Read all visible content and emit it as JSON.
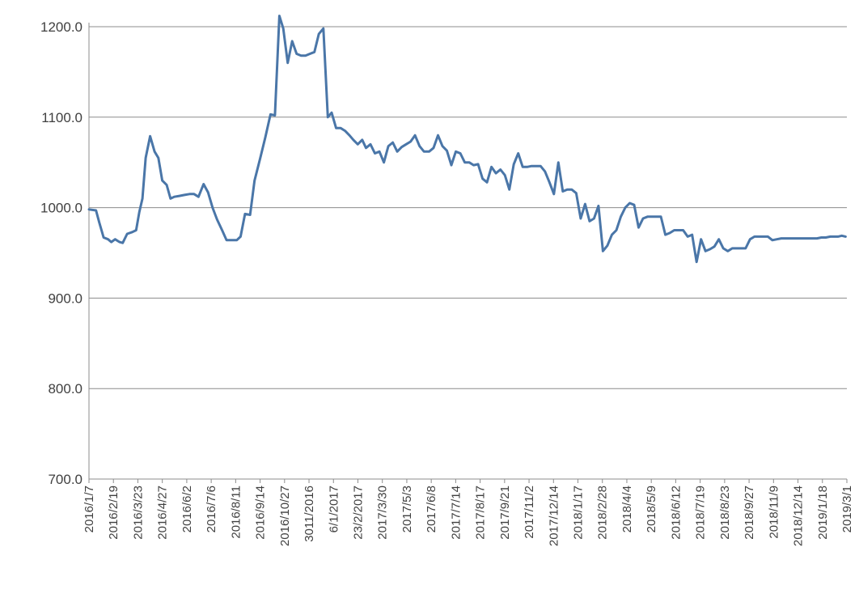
{
  "colors": {
    "line": "#4a76a8",
    "grid": "#8c8c8c",
    "text": "#404040",
    "background": "#ffffff"
  },
  "chart_data": {
    "type": "line",
    "title": "",
    "xlabel": "",
    "ylabel": "",
    "ylim": [
      700,
      1200
    ],
    "grid": true,
    "legend": "none",
    "y_ticks": [
      "700.0",
      "800.0",
      "900.0",
      "1000.0",
      "1100.0",
      "1200.0"
    ],
    "x_tick_labels": [
      "2016/1/7",
      "2016/2/19",
      "2016/3/23",
      "2016/4/27",
      "2016/6/2",
      "2016/7/6",
      "2016/8/11",
      "2016/9/14",
      "2016/10/27",
      "3011/2016",
      "6/1/2017",
      "23/2/2017",
      "2017/3/30",
      "2017/5/3",
      "2017/6/8",
      "2017/7/14",
      "2017/8/17",
      "2017/9/21",
      "2017/11/2",
      "2017/12/14",
      "2018/1/17",
      "2018/2/28",
      "2018/4/4",
      "2018/5/9",
      "2018/6/12",
      "2018/7/19",
      "2018/8/23",
      "2018/9/27",
      "2018/11/9",
      "2018/12/14",
      "2019/1/18",
      "2019/3/1"
    ],
    "series": [
      {
        "points": [
          [
            0,
            998
          ],
          [
            1.1,
            997
          ],
          [
            1.6,
            984
          ],
          [
            2.3,
            967
          ],
          [
            3.0,
            965
          ],
          [
            3.5,
            962
          ],
          [
            4.1,
            965
          ],
          [
            4.8,
            962
          ],
          [
            5.3,
            961
          ],
          [
            6.0,
            971
          ],
          [
            6.8,
            973
          ],
          [
            7.4,
            975
          ],
          [
            7.9,
            995
          ],
          [
            8.4,
            1010
          ],
          [
            8.9,
            1055
          ],
          [
            9.6,
            1079
          ],
          [
            10.3,
            1062
          ],
          [
            10.9,
            1055
          ],
          [
            11.5,
            1030
          ],
          [
            12.2,
            1025
          ],
          [
            12.8,
            1010
          ],
          [
            13.4,
            1012
          ],
          [
            14.2,
            1013
          ],
          [
            15.0,
            1014
          ],
          [
            15.8,
            1015
          ],
          [
            16.5,
            1015
          ],
          [
            17.2,
            1012
          ],
          [
            18.0,
            1026
          ],
          [
            18.7,
            1017
          ],
          [
            19.4,
            1000
          ],
          [
            20.1,
            987
          ],
          [
            20.9,
            975
          ],
          [
            21.6,
            964
          ],
          [
            22.4,
            964
          ],
          [
            23.2,
            964
          ],
          [
            23.8,
            968
          ],
          [
            24.5,
            993
          ],
          [
            25.3,
            992
          ],
          [
            26.0,
            1030
          ],
          [
            26.9,
            1055
          ],
          [
            27.7,
            1078
          ],
          [
            28.5,
            1103
          ],
          [
            29.2,
            1102
          ],
          [
            29.9,
            1212
          ],
          [
            30.5,
            1198
          ],
          [
            31.2,
            1160
          ],
          [
            31.9,
            1184
          ],
          [
            32.6,
            1170
          ],
          [
            33.3,
            1168
          ],
          [
            34.0,
            1168
          ],
          [
            34.7,
            1170
          ],
          [
            35.4,
            1172
          ],
          [
            36.1,
            1192
          ],
          [
            36.8,
            1198
          ],
          [
            37.5,
            1100
          ],
          [
            38.1,
            1105
          ],
          [
            38.8,
            1088
          ],
          [
            39.5,
            1088
          ],
          [
            40.2,
            1085
          ],
          [
            40.9,
            1080
          ],
          [
            41.5,
            1075
          ],
          [
            42.2,
            1070
          ],
          [
            42.9,
            1075
          ],
          [
            43.5,
            1066
          ],
          [
            44.2,
            1070
          ],
          [
            44.9,
            1060
          ],
          [
            45.6,
            1062
          ],
          [
            46.3,
            1050
          ],
          [
            47.0,
            1068
          ],
          [
            47.7,
            1072
          ],
          [
            48.4,
            1062
          ],
          [
            49.1,
            1067
          ],
          [
            49.8,
            1070
          ],
          [
            50.5,
            1073
          ],
          [
            51.2,
            1080
          ],
          [
            51.9,
            1068
          ],
          [
            52.6,
            1062
          ],
          [
            53.4,
            1062
          ],
          [
            54.1,
            1066
          ],
          [
            54.8,
            1080
          ],
          [
            55.5,
            1068
          ],
          [
            56.2,
            1063
          ],
          [
            56.9,
            1047
          ],
          [
            57.6,
            1062
          ],
          [
            58.3,
            1060
          ],
          [
            59.0,
            1050
          ],
          [
            59.7,
            1050
          ],
          [
            60.4,
            1047
          ],
          [
            61.1,
            1048
          ],
          [
            61.8,
            1032
          ],
          [
            62.5,
            1028
          ],
          [
            63.2,
            1045
          ],
          [
            63.9,
            1038
          ],
          [
            64.6,
            1042
          ],
          [
            65.3,
            1036
          ],
          [
            66.0,
            1020
          ],
          [
            66.7,
            1048
          ],
          [
            67.4,
            1060
          ],
          [
            68.1,
            1045
          ],
          [
            68.8,
            1045
          ],
          [
            69.5,
            1046
          ],
          [
            70.2,
            1046
          ],
          [
            70.9,
            1046
          ],
          [
            71.6,
            1040
          ],
          [
            72.3,
            1028
          ],
          [
            73.0,
            1015
          ],
          [
            73.7,
            1050
          ],
          [
            74.4,
            1018
          ],
          [
            75.1,
            1020
          ],
          [
            75.8,
            1020
          ],
          [
            76.5,
            1016
          ],
          [
            77.2,
            988
          ],
          [
            77.9,
            1004
          ],
          [
            78.6,
            985
          ],
          [
            79.3,
            988
          ],
          [
            80.0,
            1002
          ],
          [
            80.7,
            952
          ],
          [
            81.4,
            958
          ],
          [
            82.1,
            970
          ],
          [
            82.8,
            975
          ],
          [
            83.5,
            990
          ],
          [
            84.2,
            1000
          ],
          [
            84.9,
            1005
          ],
          [
            85.6,
            1003
          ],
          [
            86.3,
            978
          ],
          [
            87.0,
            988
          ],
          [
            87.7,
            990
          ],
          [
            88.4,
            990
          ],
          [
            89.1,
            990
          ],
          [
            89.8,
            990
          ],
          [
            90.5,
            970
          ],
          [
            91.2,
            972
          ],
          [
            91.9,
            975
          ],
          [
            92.6,
            975
          ],
          [
            93.3,
            975
          ],
          [
            94.0,
            968
          ],
          [
            94.7,
            970
          ],
          [
            95.4,
            940
          ],
          [
            96.1,
            965
          ],
          [
            96.8,
            952
          ],
          [
            97.5,
            954
          ],
          [
            98.2,
            957
          ],
          [
            98.9,
            965
          ],
          [
            99.6,
            955
          ],
          [
            100.3,
            952
          ],
          [
            101.0,
            955
          ],
          [
            101.7,
            955
          ],
          [
            102.4,
            955
          ],
          [
            103.1,
            955
          ],
          [
            103.8,
            965
          ],
          [
            104.5,
            968
          ],
          [
            105.2,
            968
          ],
          [
            105.9,
            968
          ],
          [
            106.6,
            968
          ],
          [
            107.3,
            964
          ],
          [
            108.0,
            965
          ],
          [
            108.7,
            966
          ],
          [
            109.4,
            966
          ],
          [
            110.1,
            966
          ],
          [
            110.8,
            966
          ],
          [
            111.5,
            966
          ],
          [
            112.2,
            966
          ],
          [
            112.9,
            966
          ],
          [
            113.6,
            966
          ],
          [
            114.3,
            966
          ],
          [
            115.0,
            967
          ],
          [
            115.7,
            967
          ],
          [
            116.4,
            968
          ],
          [
            117.0,
            968
          ],
          [
            117.6,
            968
          ],
          [
            118.2,
            969
          ],
          [
            118.8,
            968
          ]
        ]
      }
    ]
  }
}
